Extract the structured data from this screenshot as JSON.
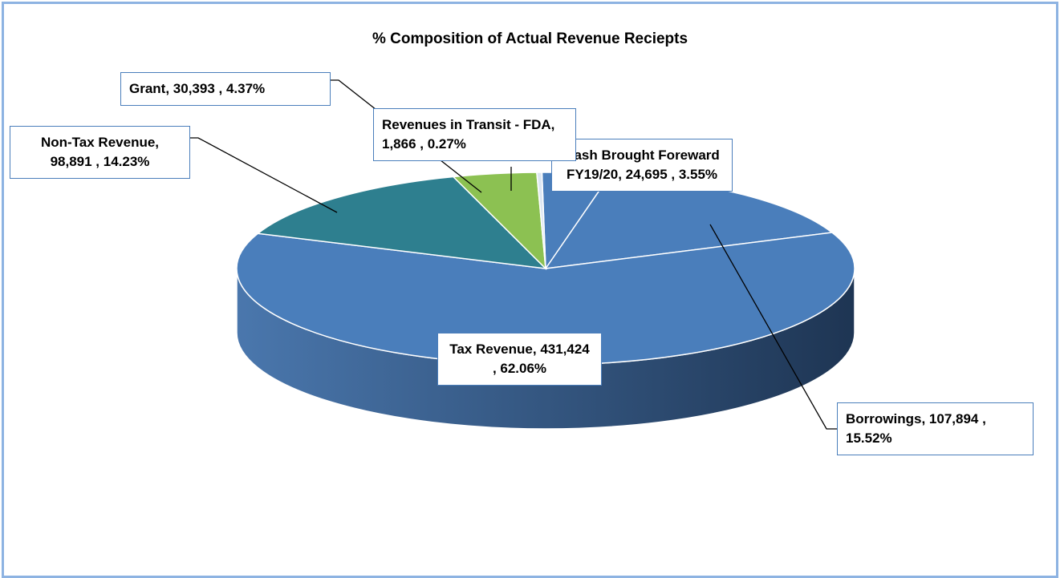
{
  "chart_data": {
    "type": "pie3d",
    "title": "% Composition of Actual Revenue Reciepts",
    "categories": [
      "Cash Brought Foreward FY19/20,",
      "Borrowings,",
      "Tax Revenue,",
      "Non-Tax Revenue,",
      "Grant,",
      "Revenues in Transit - FDA,"
    ],
    "values": [
      24695,
      107894,
      431424,
      98891,
      30393,
      1866
    ],
    "value_labels": [
      "24,695 , 3.55%",
      "107,894 , 15.52%",
      "431,424 , 62.06%",
      "98,891 , 14.23%",
      "30,393 , 4.37%",
      "1,866 , 0.27%"
    ],
    "colors": [
      "#4a7ebb",
      "#4a7ebb",
      "#4a7ebb",
      "#2e7f8f",
      "#8cc152",
      "#dce6f2"
    ]
  }
}
